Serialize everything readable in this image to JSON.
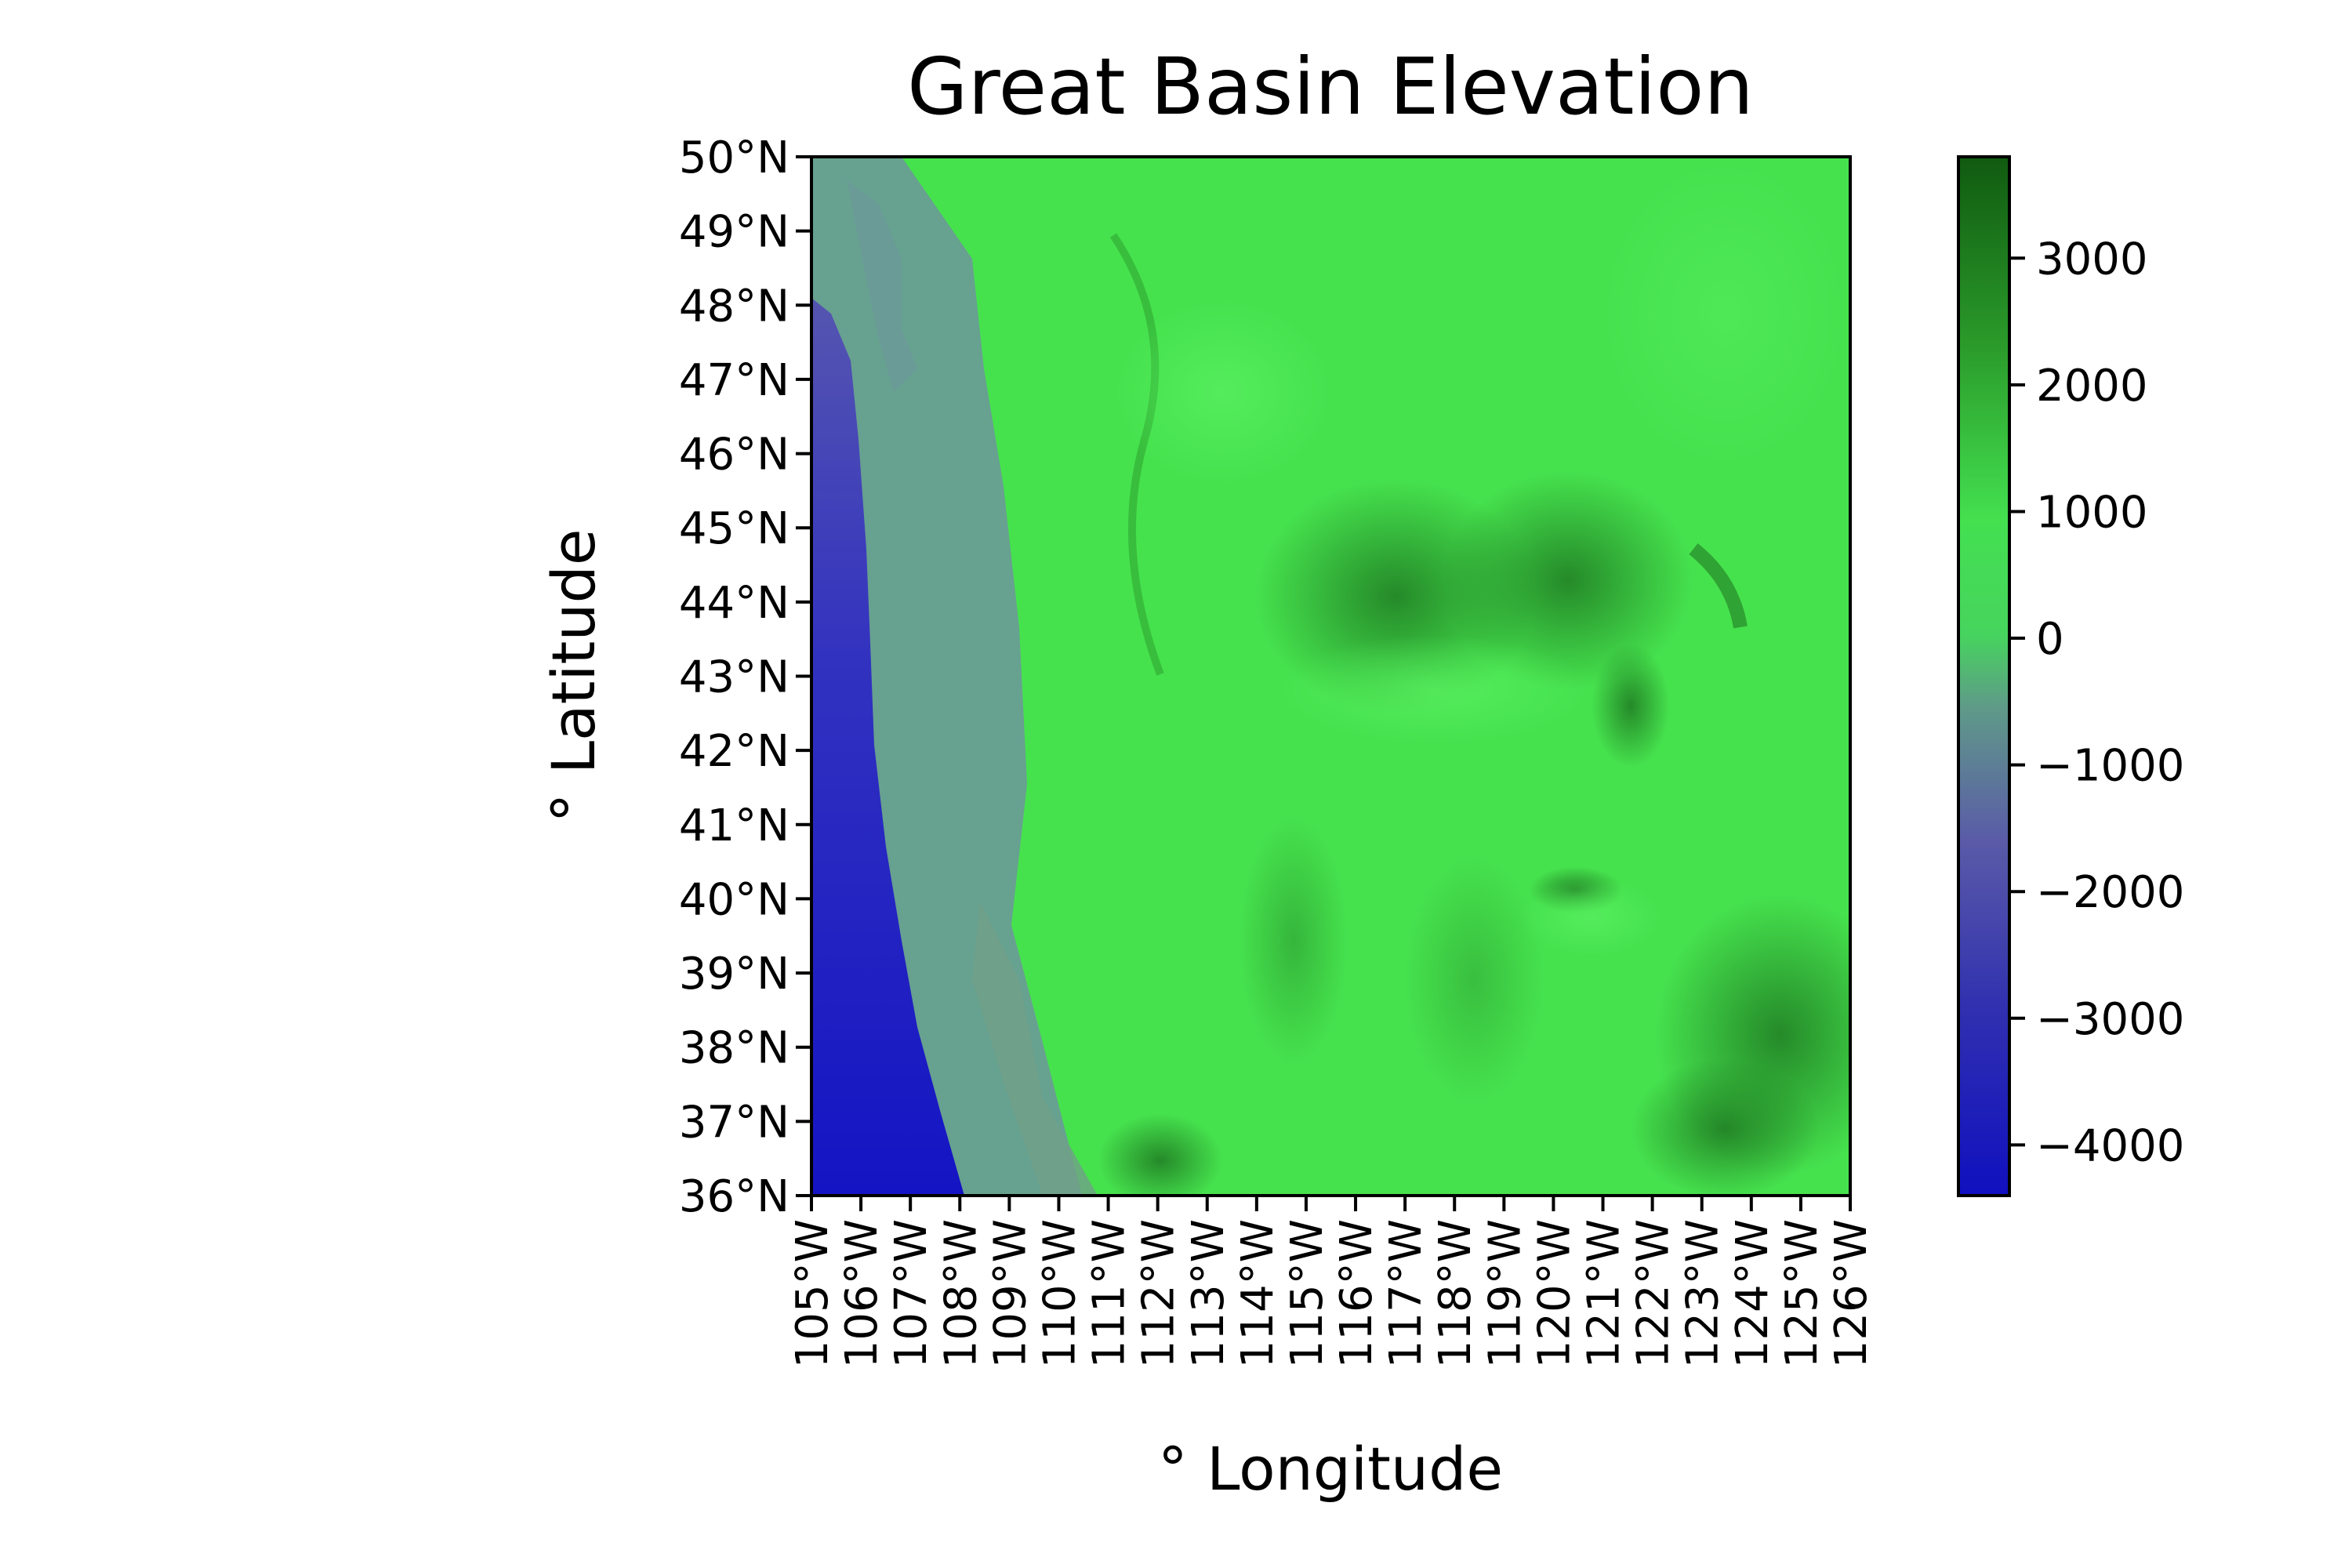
{
  "title": "Great Basin Elevation",
  "xlabel": "° Longitude",
  "ylabel": "° Latitude",
  "lat_ticks": [
    "50°N",
    "49°N",
    "48°N",
    "47°N",
    "46°N",
    "45°N",
    "44°N",
    "43°N",
    "42°N",
    "41°N",
    "40°N",
    "39°N",
    "38°N",
    "37°N",
    "36°N"
  ],
  "lon_ticks": [
    "105°W",
    "106°W",
    "107°W",
    "108°W",
    "109°W",
    "110°W",
    "111°W",
    "112°W",
    "113°W",
    "114°W",
    "115°W",
    "116°W",
    "117°W",
    "118°W",
    "119°W",
    "120°W",
    "121°W",
    "122°W",
    "123°W",
    "124°W",
    "125°W",
    "126°W"
  ],
  "colorbar": {
    "ticks": [
      "3000",
      "2000",
      "1000",
      "0",
      "−1000",
      "−2000",
      "−3000",
      "−4000"
    ],
    "tick_values": [
      3000,
      2000,
      1000,
      0,
      -1000,
      -2000,
      -3000,
      -4000
    ],
    "vmin": -4400,
    "vmax": 3800,
    "colors": {
      "low": "#1010c0",
      "mid_low": "#5a5aa8",
      "zero": "#60b080",
      "high_light": "#44e050",
      "high_dark": "#105a10"
    }
  },
  "map_colors": {
    "ocean": "#1a1ac8",
    "shelf": "#6a8aa0",
    "land": "#46e24e",
    "mountain": "#1f7a22"
  }
}
